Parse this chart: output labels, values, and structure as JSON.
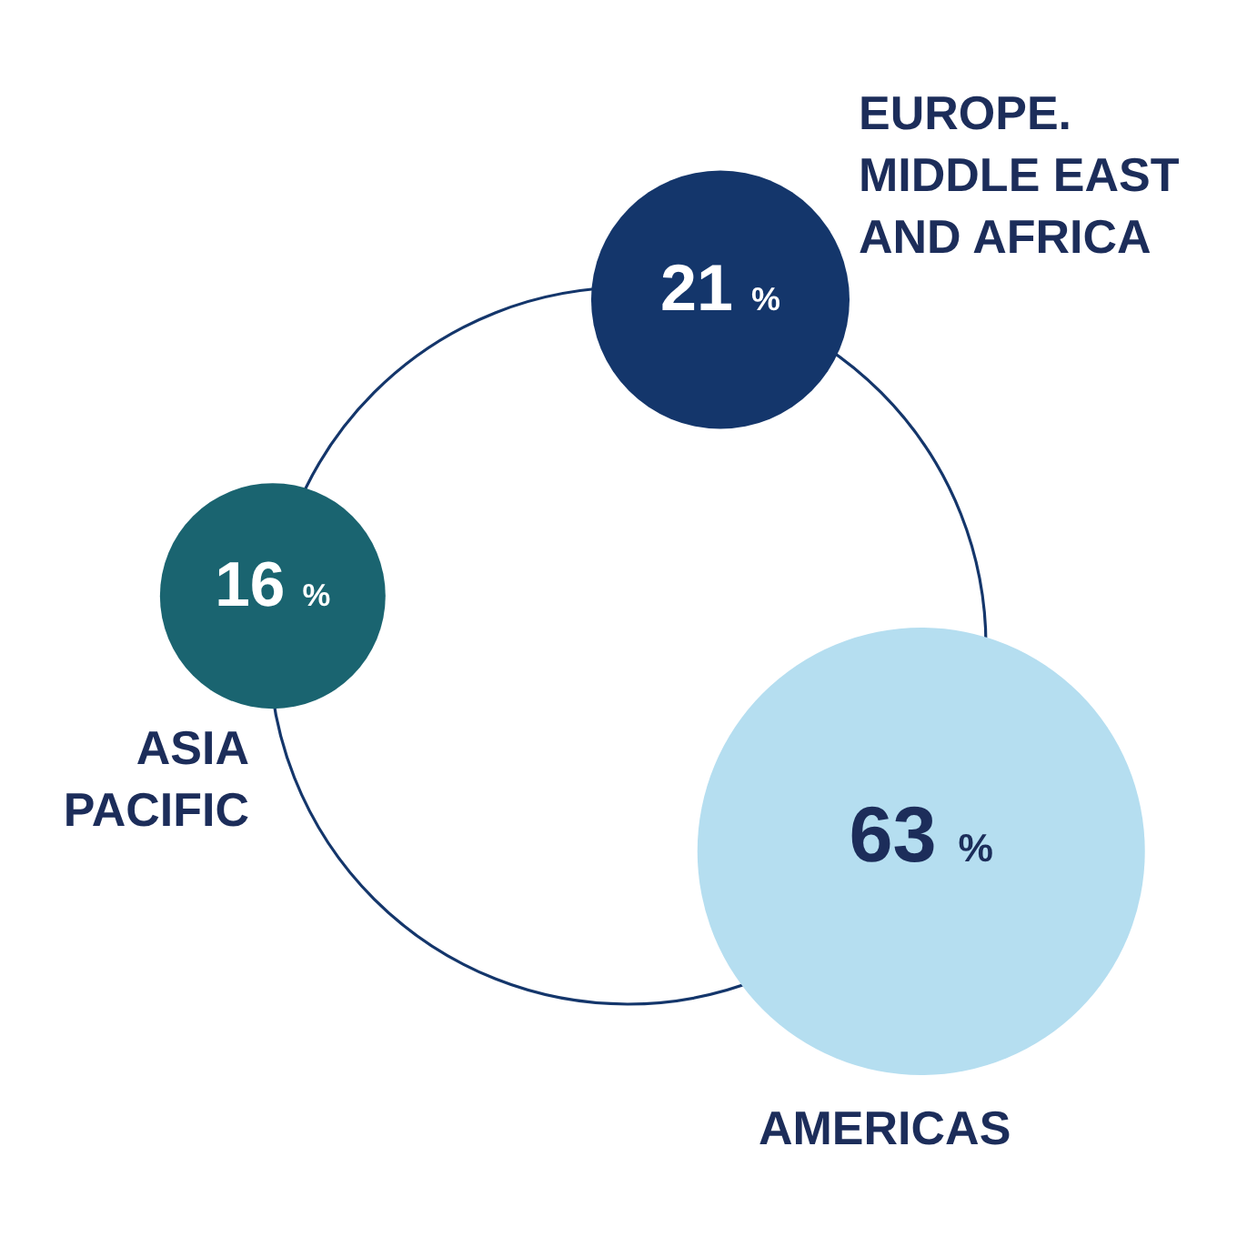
{
  "chart_data": {
    "type": "other",
    "categories": [
      "EUROPE. MIDDLE EAST AND AFRICA",
      "ASIA PACIFIC",
      "AMERICAS"
    ],
    "values": [
      21,
      16,
      63
    ],
    "value_labels": [
      "21 %",
      "16 %",
      "63 %"
    ],
    "colors": [
      "#14366b",
      "#1a6470",
      "#b5def0"
    ]
  }
}
